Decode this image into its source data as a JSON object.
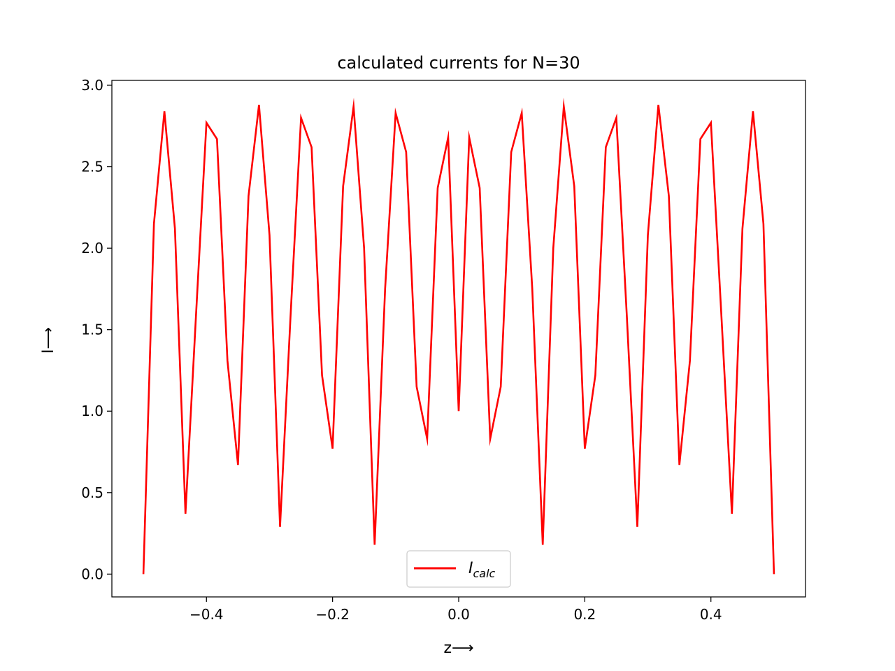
{
  "chart_data": {
    "type": "line",
    "title": "calculated currents for N=30",
    "xlabel": "z⟶",
    "ylabel": "I⟶",
    "xlim": [
      -0.55,
      0.55
    ],
    "ylim": [
      -0.14,
      3.03
    ],
    "xticks": [
      -0.4,
      -0.2,
      0.0,
      0.2,
      0.4
    ],
    "xtick_labels": [
      "−0.4",
      "−0.2",
      "0.0",
      "0.2",
      "0.4"
    ],
    "yticks": [
      0.0,
      0.5,
      1.0,
      1.5,
      2.0,
      2.5,
      3.0
    ],
    "ytick_labels": [
      "0.0",
      "0.5",
      "1.0",
      "1.5",
      "2.0",
      "2.5",
      "3.0"
    ],
    "grid": false,
    "legend_position": "lower center",
    "series": [
      {
        "name": "I",
        "name_subscript": "calc",
        "color": "#ff0000",
        "x": [
          -0.5,
          -0.4833,
          -0.4667,
          -0.45,
          -0.4333,
          -0.4167,
          -0.4,
          -0.3833,
          -0.3667,
          -0.35,
          -0.3333,
          -0.3167,
          -0.3,
          -0.2833,
          -0.2667,
          -0.25,
          -0.2333,
          -0.2167,
          -0.2,
          -0.1833,
          -0.1667,
          -0.15,
          -0.1333,
          -0.1167,
          -0.1,
          -0.0833,
          -0.0667,
          -0.05,
          -0.0333,
          -0.0167,
          0.0,
          0.0167,
          0.0333,
          0.05,
          0.0667,
          0.0833,
          0.1,
          0.1167,
          0.1333,
          0.15,
          0.1667,
          0.1833,
          0.2,
          0.2167,
          0.2333,
          0.25,
          0.2667,
          0.2833,
          0.3,
          0.3167,
          0.3333,
          0.35,
          0.3667,
          0.3833,
          0.4,
          0.4167,
          0.4333,
          0.45,
          0.4667,
          0.4833,
          0.5
        ],
        "y": [
          0.0,
          2.15,
          2.84,
          2.12,
          0.37,
          1.58,
          2.77,
          2.67,
          1.31,
          0.67,
          2.32,
          2.88,
          2.08,
          0.29,
          1.58,
          2.8,
          2.62,
          1.22,
          0.77,
          2.38,
          2.87,
          2.0,
          0.18,
          1.75,
          2.83,
          2.59,
          1.15,
          0.83,
          2.37,
          2.68,
          1.0,
          2.68,
          2.37,
          0.83,
          1.15,
          2.59,
          2.83,
          1.75,
          0.18,
          2.0,
          2.87,
          2.38,
          0.77,
          1.22,
          2.62,
          2.8,
          1.58,
          0.29,
          2.08,
          2.88,
          2.32,
          0.67,
          1.31,
          2.67,
          2.77,
          1.58,
          0.37,
          2.12,
          2.84,
          2.15,
          0.0
        ]
      }
    ]
  }
}
